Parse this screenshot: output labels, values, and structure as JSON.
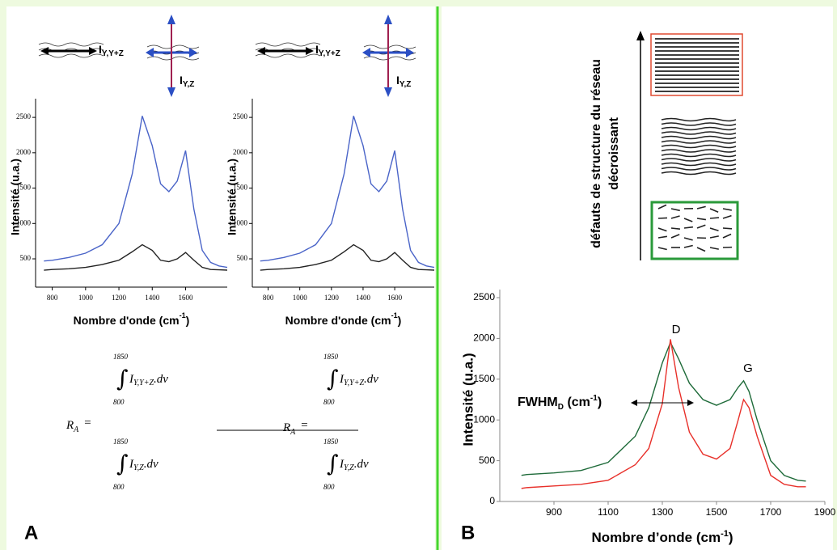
{
  "panels": {
    "a": "A",
    "b": "B"
  },
  "polarization": [
    {
      "main": "I",
      "sub": "Y,Y+Z"
    },
    {
      "main": "I",
      "sub": "Y,Z"
    }
  ],
  "formula": {
    "lhs_main": "R",
    "lhs_sub": "A",
    "equals": "=",
    "upper": "1850",
    "lower": "800",
    "int_main": "I",
    "num_sub": "Y,Y+Z",
    "den_sub": "Y,Z",
    "tail": ".dv"
  },
  "structure": {
    "label_lines": [
      "défauts de structure du réseau",
      "décroissant"
    ]
  },
  "chart_data": [
    {
      "type": "line",
      "ylabel": "Intensité (u.a.)",
      "xlabel": {
        "text": "Nombre d'onde (cm",
        "sup": "-1",
        "after": ")"
      },
      "xlim": [
        700,
        1850
      ],
      "xticks": [
        800,
        1000,
        1200,
        1400,
        1600
      ],
      "ylim": [
        100,
        2650
      ],
      "yticks": [
        500,
        1000,
        1500,
        2000,
        2500
      ],
      "x": [
        750,
        800,
        900,
        1000,
        1100,
        1200,
        1280,
        1340,
        1400,
        1450,
        1500,
        1550,
        1600,
        1650,
        1700,
        1750,
        1800,
        1850
      ],
      "series": [
        {
          "color": "#4a64c8",
          "values": [
            470,
            480,
            520,
            580,
            700,
            1000,
            1700,
            2520,
            2100,
            1560,
            1450,
            1600,
            2030,
            1200,
            620,
            450,
            400,
            380
          ]
        },
        {
          "color": "#222222",
          "values": [
            340,
            350,
            360,
            380,
            420,
            480,
            600,
            700,
            620,
            480,
            460,
            500,
            590,
            480,
            380,
            350,
            345,
            340
          ]
        }
      ]
    },
    {
      "type": "line",
      "ylabel": "Intensité (u.a.)",
      "xlabel": {
        "text": "Nombre d'onde (cm",
        "sup": "-1",
        "after": ")"
      },
      "xlim": [
        700,
        1850
      ],
      "xticks": [
        800,
        1000,
        1200,
        1400,
        1600
      ],
      "ylim": [
        100,
        2650
      ],
      "yticks": [
        500,
        1000,
        1500,
        2000,
        2500
      ],
      "x": [
        750,
        800,
        900,
        1000,
        1100,
        1200,
        1280,
        1340,
        1400,
        1450,
        1500,
        1550,
        1600,
        1650,
        1700,
        1750,
        1800,
        1850
      ],
      "series": [
        {
          "color": "#4a64c8",
          "values": [
            470,
            480,
            520,
            580,
            700,
            1000,
            1700,
            2520,
            2100,
            1560,
            1450,
            1600,
            2030,
            1200,
            620,
            450,
            400,
            380
          ]
        },
        {
          "color": "#222222",
          "values": [
            340,
            350,
            360,
            380,
            420,
            480,
            600,
            700,
            620,
            480,
            460,
            500,
            590,
            480,
            380,
            350,
            345,
            340
          ]
        }
      ]
    },
    {
      "type": "line",
      "ylabel": "Intensité (u.a.)",
      "xlabel": {
        "text": "Nombre d’onde (cm",
        "sup": "-1",
        "after": ")"
      },
      "annotations": {
        "d": "D",
        "g": "G",
        "fwhm": {
          "text": "FWHM",
          "sub": "D",
          "mid": " (cm",
          "sup": "-1",
          "after": ")"
        }
      },
      "xlim": [
        700,
        1900
      ],
      "xticks": [
        900,
        1100,
        1300,
        1500,
        1700,
        1900
      ],
      "ylim": [
        0,
        2500
      ],
      "yticks": [
        0,
        500,
        1000,
        1500,
        2000,
        2500
      ],
      "x": [
        780,
        800,
        900,
        1000,
        1100,
        1200,
        1250,
        1300,
        1330,
        1360,
        1400,
        1450,
        1500,
        1550,
        1580,
        1600,
        1620,
        1650,
        1700,
        1750,
        1800,
        1830
      ],
      "series": [
        {
          "color": "#1f6b3a",
          "values": [
            320,
            330,
            350,
            380,
            480,
            800,
            1150,
            1700,
            1950,
            1750,
            1450,
            1250,
            1180,
            1250,
            1400,
            1480,
            1350,
            1000,
            500,
            320,
            260,
            250
          ]
        },
        {
          "color": "#e8302a",
          "values": [
            160,
            170,
            190,
            210,
            260,
            450,
            650,
            1200,
            1990,
            1400,
            850,
            580,
            520,
            650,
            1000,
            1250,
            1150,
            800,
            320,
            210,
            180,
            180
          ]
        }
      ]
    }
  ]
}
